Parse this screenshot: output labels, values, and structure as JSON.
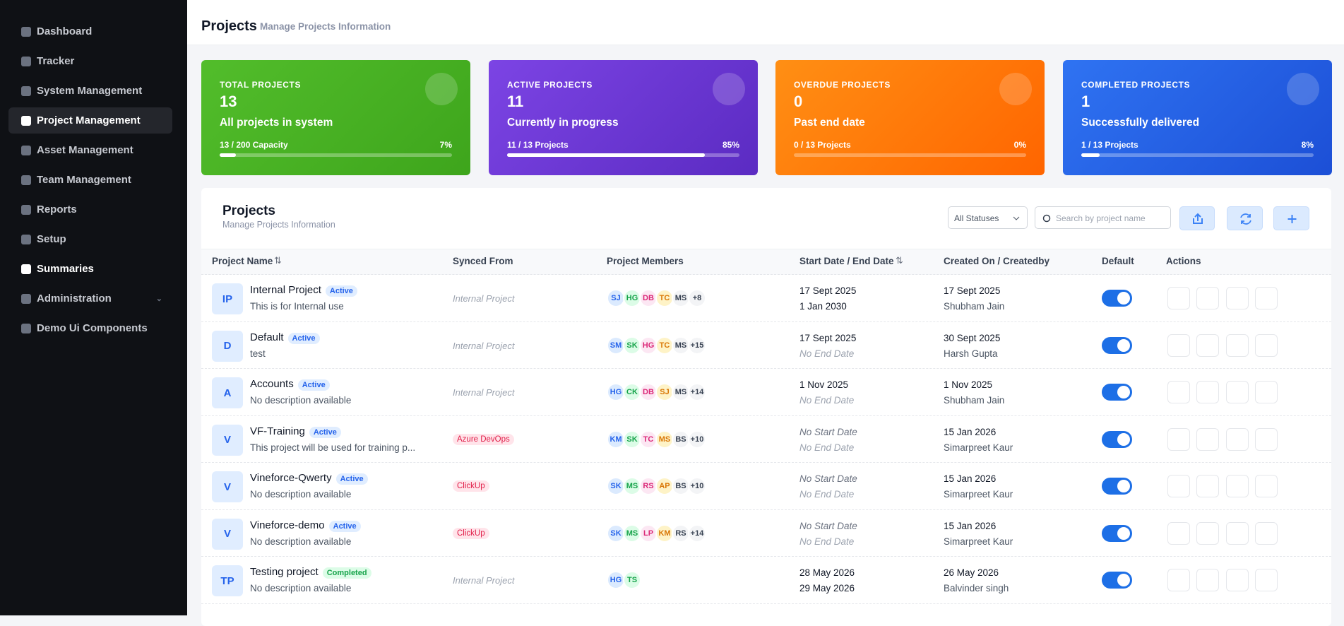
{
  "sidebar": {
    "items": [
      "Dashboard",
      "Tracker",
      "System Management",
      "Project Management",
      "Asset Management",
      "Team Management",
      "Reports",
      "Setup",
      "Summaries",
      "Administration",
      "Demo Ui Components"
    ]
  },
  "header": {
    "title": "Projects",
    "subtitle": "Manage Projects Information"
  },
  "cards": [
    {
      "label": "TOTAL PROJECTS",
      "value": 13,
      "description": "All projects in system",
      "progress_text": "13 / 200 Capacity",
      "percent": 7,
      "percent_label": "7%"
    },
    {
      "label": "ACTIVE PROJECTS",
      "value": 11,
      "description": "Currently in progress",
      "progress_text": "11 / 13 Projects",
      "percent": 85,
      "percent_label": "85%"
    },
    {
      "label": "OVERDUE PROJECTS",
      "value": 0,
      "description": "Past end date",
      "progress_text": "0 / 13 Projects",
      "percent": 0,
      "percent_label": "0%"
    },
    {
      "label": "COMPLETED PROJECTS",
      "value": 1,
      "description": "Successfully delivered",
      "progress_text": "1 / 13 Projects",
      "percent": 8,
      "percent_label": "8%"
    }
  ],
  "panel": {
    "title": "Projects",
    "subtitle": "Manage Projects Information",
    "status_filter": "All Statuses",
    "search_placeholder": "Search by project name"
  },
  "table": {
    "columns": [
      "Project Name",
      "Synced From",
      "Project Members",
      "Start Date / End Date",
      "Created On / Createdby",
      "Default",
      "Actions"
    ],
    "rows": [
      {
        "initials": "IP",
        "name": "Internal Project",
        "status": "Active",
        "description": "This is for Internal use",
        "synced": "Internal Project",
        "members": [
          "SJ",
          "HG",
          "DB",
          "TC",
          "MS"
        ],
        "more": "+8",
        "start": "17 Sept 2025",
        "end": "1 Jan 2030",
        "created": "17 Sept 2025",
        "created_by": "Shubham Jain"
      },
      {
        "initials": "D",
        "name": "Default",
        "status": "Active",
        "description": "test",
        "synced": "Internal Project",
        "members": [
          "SM",
          "SK",
          "HG",
          "TC",
          "MS"
        ],
        "more": "+15",
        "start": "17 Sept 2025",
        "end": "No End Date",
        "created": "30 Sept 2025",
        "created_by": "Harsh Gupta"
      },
      {
        "initials": "A",
        "name": "Accounts",
        "status": "Active",
        "description": "No description available",
        "synced": "Internal Project",
        "members": [
          "HG",
          "CK",
          "DB",
          "SJ",
          "MS"
        ],
        "more": "+14",
        "start": "1 Nov 2025",
        "end": "No End Date",
        "created": "1 Nov 2025",
        "created_by": "Shubham Jain"
      },
      {
        "initials": "V",
        "name": "VF-Training",
        "status": "Active",
        "description": "This project will be used for training p...",
        "synced": "Azure DevOps",
        "members": [
          "KM",
          "SK",
          "TC",
          "MS",
          "BS"
        ],
        "more": "+10",
        "start": "No Start Date",
        "end": "No End Date",
        "created": "15 Jan 2026",
        "created_by": "Simarpreet Kaur"
      },
      {
        "initials": "V",
        "name": "Vineforce-Qwerty",
        "status": "Active",
        "description": "No description available",
        "synced": "ClickUp",
        "members": [
          "SK",
          "MS",
          "RS",
          "AP",
          "BS"
        ],
        "more": "+10",
        "start": "No Start Date",
        "end": "No End Date",
        "created": "15 Jan 2026",
        "created_by": "Simarpreet Kaur"
      },
      {
        "initials": "V",
        "name": "Vineforce-demo",
        "status": "Active",
        "description": "No description available",
        "synced": "ClickUp",
        "members": [
          "SK",
          "MS",
          "LP",
          "KM",
          "RS"
        ],
        "more": "+14",
        "start": "No Start Date",
        "end": "No End Date",
        "created": "15 Jan 2026",
        "created_by": "Simarpreet Kaur"
      },
      {
        "initials": "TP",
        "name": "Testing project",
        "status": "Completed",
        "description": "No description available",
        "synced": "Internal Project",
        "members": [
          "HG",
          "TS"
        ],
        "more": null,
        "start": "28 May 2026",
        "end": "29 May 2026",
        "created": "26 May 2026",
        "created_by": "Balvinder singh"
      }
    ]
  }
}
